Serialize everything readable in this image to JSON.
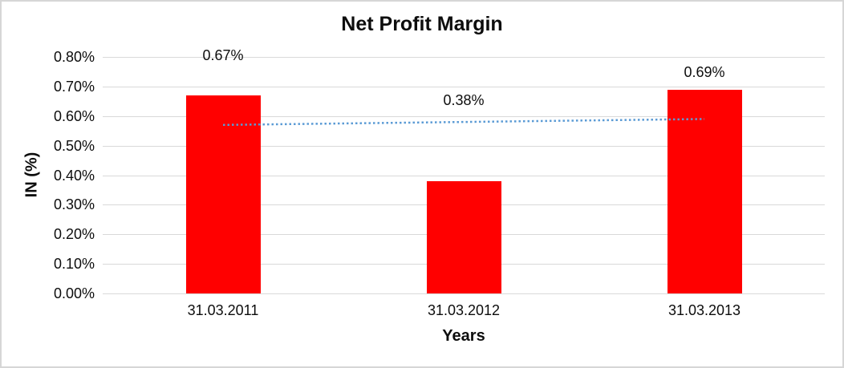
{
  "chart_data": {
    "type": "bar",
    "title": "Net Profit Margin",
    "xlabel": "Years",
    "ylabel": "IN (%)",
    "categories": [
      "31.03.2011",
      "31.03.2012",
      "31.03.2013"
    ],
    "values": [
      0.67,
      0.38,
      0.69
    ],
    "data_labels": [
      "0.67%",
      "0.38%",
      "0.69%"
    ],
    "ylim": [
      0,
      0.8
    ],
    "ytick_step": 0.1,
    "ytick_labels": [
      "0.00%",
      "0.10%",
      "0.20%",
      "0.30%",
      "0.40%",
      "0.50%",
      "0.60%",
      "0.70%",
      "0.80%"
    ],
    "grid": true,
    "legend": "none",
    "bar_color": "#FF0000",
    "gridline_color": "#D9D9D9",
    "text_color": "#0D0D0D",
    "trendline": {
      "type": "linear",
      "style": "dotted",
      "color": "#5B9BD5",
      "start_value": 0.57,
      "end_value": 0.59
    },
    "label_anchor_values": [
      0.805,
      0.654,
      0.749
    ]
  }
}
